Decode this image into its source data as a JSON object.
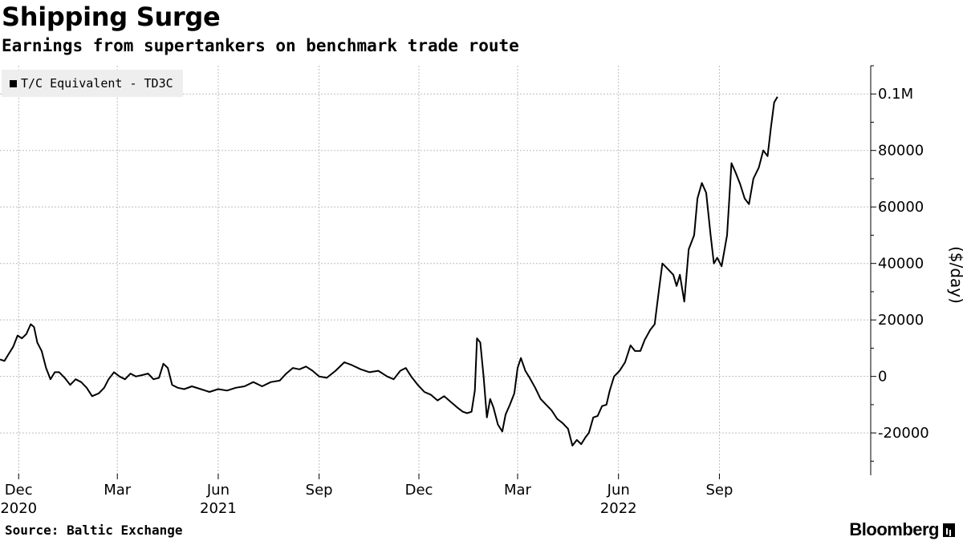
{
  "header": {
    "title": "Shipping Surge",
    "subtitle": "Earnings from supertankers on benchmark trade route"
  },
  "footer": {
    "source": "Source: Baltic Exchange",
    "brand": "Bloomberg"
  },
  "colors": {
    "line": "#000000",
    "grid": "#bdbdbd",
    "legend_bg": "#eeeeee"
  },
  "chart_data": {
    "type": "line",
    "title": "Shipping Surge",
    "subtitle": "Earnings from supertankers on benchmark trade route",
    "ylabel": "($/day)",
    "ylim": [
      -35000,
      110000
    ],
    "xlim": [
      "2020-11-14",
      "2023-01-17"
    ],
    "grid": true,
    "legend_position": "top-left",
    "y_ticks": [
      {
        "value": 100000,
        "label": "0.1M"
      },
      {
        "value": 80000,
        "label": "80000"
      },
      {
        "value": 60000,
        "label": "60000"
      },
      {
        "value": 40000,
        "label": "40000"
      },
      {
        "value": 20000,
        "label": "20000"
      },
      {
        "value": 0,
        "label": "0"
      },
      {
        "value": -20000,
        "label": "-20000"
      }
    ],
    "x_ticks": [
      {
        "date": "2020-12-01",
        "label": "Dec",
        "year": "2020"
      },
      {
        "date": "2021-03-01",
        "label": "Mar",
        "year": ""
      },
      {
        "date": "2021-06-01",
        "label": "Jun",
        "year": "2021"
      },
      {
        "date": "2021-09-01",
        "label": "Sep",
        "year": ""
      },
      {
        "date": "2021-12-01",
        "label": "Dec",
        "year": ""
      },
      {
        "date": "2022-03-01",
        "label": "Mar",
        "year": ""
      },
      {
        "date": "2022-06-01",
        "label": "Jun",
        "year": "2022"
      },
      {
        "date": "2022-09-01",
        "label": "Sep",
        "year": ""
      }
    ],
    "series": [
      {
        "name": "T/C Equivalent - TD3C",
        "points": [
          [
            "2020-11-14",
            6000
          ],
          [
            "2020-11-18",
            5500
          ],
          [
            "2020-11-22",
            8000
          ],
          [
            "2020-11-26",
            10500
          ],
          [
            "2020-11-30",
            14500
          ],
          [
            "2020-12-04",
            13500
          ],
          [
            "2020-12-08",
            15000
          ],
          [
            "2020-12-12",
            18500
          ],
          [
            "2020-12-15",
            17500
          ],
          [
            "2020-12-18",
            12000
          ],
          [
            "2020-12-22",
            9000
          ],
          [
            "2020-12-26",
            3000
          ],
          [
            "2020-12-30",
            -1000
          ],
          [
            "2021-01-03",
            1500
          ],
          [
            "2021-01-07",
            1500
          ],
          [
            "2021-01-12",
            -500
          ],
          [
            "2021-01-17",
            -3000
          ],
          [
            "2021-01-22",
            -1000
          ],
          [
            "2021-01-27",
            -2000
          ],
          [
            "2021-02-01",
            -4000
          ],
          [
            "2021-02-06",
            -7000
          ],
          [
            "2021-02-12",
            -6000
          ],
          [
            "2021-02-17",
            -4000
          ],
          [
            "2021-02-21",
            -1000
          ],
          [
            "2021-02-26",
            1500
          ],
          [
            "2021-03-03",
            0
          ],
          [
            "2021-03-08",
            -1000
          ],
          [
            "2021-03-13",
            1000
          ],
          [
            "2021-03-18",
            0
          ],
          [
            "2021-03-24",
            500
          ],
          [
            "2021-03-29",
            1000
          ],
          [
            "2021-04-03",
            -1000
          ],
          [
            "2021-04-08",
            -500
          ],
          [
            "2021-04-12",
            4500
          ],
          [
            "2021-04-16",
            3000
          ],
          [
            "2021-04-20",
            -3000
          ],
          [
            "2021-04-25",
            -4000
          ],
          [
            "2021-05-01",
            -4500
          ],
          [
            "2021-05-08",
            -3500
          ],
          [
            "2021-05-16",
            -4500
          ],
          [
            "2021-05-24",
            -5500
          ],
          [
            "2021-06-01",
            -4500
          ],
          [
            "2021-06-09",
            -5000
          ],
          [
            "2021-06-17",
            -4000
          ],
          [
            "2021-06-25",
            -3500
          ],
          [
            "2021-07-03",
            -2000
          ],
          [
            "2021-07-11",
            -3500
          ],
          [
            "2021-07-19",
            -2000
          ],
          [
            "2021-07-27",
            -1500
          ],
          [
            "2021-08-02",
            1000
          ],
          [
            "2021-08-08",
            3000
          ],
          [
            "2021-08-14",
            2500
          ],
          [
            "2021-08-20",
            3500
          ],
          [
            "2021-08-26",
            2000
          ],
          [
            "2021-09-01",
            0
          ],
          [
            "2021-09-08",
            -500
          ],
          [
            "2021-09-16",
            2000
          ],
          [
            "2021-09-24",
            5000
          ],
          [
            "2021-10-01",
            4000
          ],
          [
            "2021-10-09",
            2500
          ],
          [
            "2021-10-17",
            1500
          ],
          [
            "2021-10-25",
            2000
          ],
          [
            "2021-11-02",
            0
          ],
          [
            "2021-11-08",
            -1000
          ],
          [
            "2021-11-14",
            2000
          ],
          [
            "2021-11-19",
            3000
          ],
          [
            "2021-11-24",
            0
          ],
          [
            "2021-11-30",
            -3000
          ],
          [
            "2021-12-06",
            -5500
          ],
          [
            "2021-12-12",
            -6500
          ],
          [
            "2021-12-18",
            -8500
          ],
          [
            "2021-12-24",
            -7000
          ],
          [
            "2021-12-30",
            -9000
          ],
          [
            "2022-01-05",
            -11000
          ],
          [
            "2022-01-10",
            -12500
          ],
          [
            "2022-01-14",
            -13000
          ],
          [
            "2022-01-18",
            -12500
          ],
          [
            "2022-01-21",
            -5000
          ],
          [
            "2022-01-23",
            13500
          ],
          [
            "2022-01-26",
            12000
          ],
          [
            "2022-01-29",
            0
          ],
          [
            "2022-02-01",
            -14500
          ],
          [
            "2022-02-04",
            -8000
          ],
          [
            "2022-02-07",
            -11000
          ],
          [
            "2022-02-11",
            -17000
          ],
          [
            "2022-02-15",
            -19500
          ],
          [
            "2022-02-18",
            -13500
          ],
          [
            "2022-02-22",
            -10000
          ],
          [
            "2022-02-26",
            -6000
          ],
          [
            "2022-03-01",
            3000
          ],
          [
            "2022-03-04",
            6500
          ],
          [
            "2022-03-08",
            2000
          ],
          [
            "2022-03-12",
            -500
          ],
          [
            "2022-03-17",
            -4000
          ],
          [
            "2022-03-22",
            -8000
          ],
          [
            "2022-03-27",
            -10000
          ],
          [
            "2022-04-01",
            -12000
          ],
          [
            "2022-04-06",
            -15000
          ],
          [
            "2022-04-11",
            -16500
          ],
          [
            "2022-04-16",
            -18500
          ],
          [
            "2022-04-20",
            -24500
          ],
          [
            "2022-04-24",
            -22500
          ],
          [
            "2022-04-28",
            -24000
          ],
          [
            "2022-05-02",
            -21500
          ],
          [
            "2022-05-05",
            -20000
          ],
          [
            "2022-05-09",
            -14500
          ],
          [
            "2022-05-13",
            -14000
          ],
          [
            "2022-05-17",
            -10500
          ],
          [
            "2022-05-21",
            -10000
          ],
          [
            "2022-05-24",
            -5000
          ],
          [
            "2022-05-28",
            0
          ],
          [
            "2022-06-02",
            2000
          ],
          [
            "2022-06-07",
            5000
          ],
          [
            "2022-06-12",
            11000
          ],
          [
            "2022-06-16",
            9000
          ],
          [
            "2022-06-21",
            9000
          ],
          [
            "2022-06-25",
            13000
          ],
          [
            "2022-06-30",
            16500
          ],
          [
            "2022-07-04",
            18500
          ],
          [
            "2022-07-08",
            31000
          ],
          [
            "2022-07-11",
            40000
          ],
          [
            "2022-07-16",
            38000
          ],
          [
            "2022-07-21",
            36000
          ],
          [
            "2022-07-24",
            32000
          ],
          [
            "2022-07-27",
            36000
          ],
          [
            "2022-07-31",
            26500
          ],
          [
            "2022-08-04",
            45000
          ],
          [
            "2022-08-09",
            50000
          ],
          [
            "2022-08-12",
            63000
          ],
          [
            "2022-08-16",
            68500
          ],
          [
            "2022-08-20",
            65000
          ],
          [
            "2022-08-24",
            50000
          ],
          [
            "2022-08-27",
            40000
          ],
          [
            "2022-08-30",
            42000
          ],
          [
            "2022-09-03",
            39000
          ],
          [
            "2022-09-08",
            50000
          ],
          [
            "2022-09-12",
            75500
          ],
          [
            "2022-09-16",
            72000
          ],
          [
            "2022-09-20",
            68000
          ],
          [
            "2022-09-24",
            63000
          ],
          [
            "2022-09-28",
            61000
          ],
          [
            "2022-10-02",
            70000
          ],
          [
            "2022-10-07",
            74000
          ],
          [
            "2022-10-11",
            80000
          ],
          [
            "2022-10-15",
            78000
          ],
          [
            "2022-10-18",
            88000
          ],
          [
            "2022-10-21",
            97000
          ],
          [
            "2022-10-24",
            99000
          ]
        ]
      }
    ]
  }
}
